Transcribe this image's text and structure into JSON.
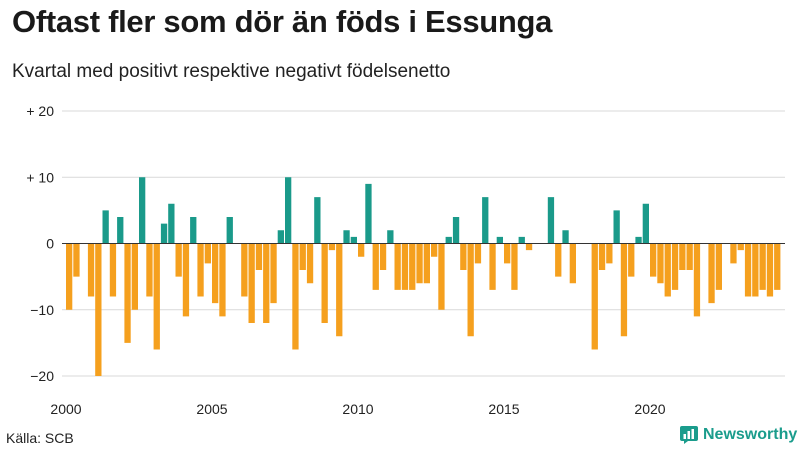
{
  "title": "Oftast fler som dör än föds i Essunga",
  "subtitle": "Kvartal med positivt respektive negativt födelsenetto",
  "source": "Källa: SCB",
  "brand": "Newsworthy",
  "colors": {
    "positive": "#1a9a8a",
    "negative": "#f5a01e",
    "grid": "#d9d9d9",
    "brand": "#1a9c8c"
  },
  "chart_data": {
    "type": "bar",
    "start_year": 2000,
    "x_ticks": [
      "2000",
      "2005",
      "2010",
      "2015",
      "2020"
    ],
    "y_ticks": [
      {
        "value": 20,
        "label": "+ 20"
      },
      {
        "value": 10,
        "label": "+ 10"
      },
      {
        "value": 0,
        "label": "0"
      },
      {
        "value": -10,
        "label": "−10"
      },
      {
        "value": -20,
        "label": "−20"
      }
    ],
    "ylim": [
      -20,
      20
    ],
    "grid": true,
    "values": [
      -10,
      -5,
      0,
      -8,
      -20,
      5,
      -8,
      4,
      -15,
      -10,
      10,
      -8,
      -16,
      3,
      6,
      -5,
      -11,
      4,
      -8,
      -3,
      -9,
      -11,
      4,
      0,
      -8,
      -12,
      -4,
      -12,
      -9,
      2,
      10,
      -16,
      -4,
      -6,
      7,
      -12,
      -1,
      -14,
      2,
      1,
      -2,
      9,
      -7,
      -4,
      2,
      -7,
      -7,
      -7,
      -6,
      -6,
      -2,
      -10,
      1,
      4,
      -4,
      -14,
      -3,
      7,
      -7,
      1,
      -3,
      -7,
      1,
      -1,
      0,
      0,
      7,
      -5,
      2,
      -6,
      0,
      0,
      -16,
      -4,
      -3,
      5,
      -14,
      -5,
      1,
      6,
      -5,
      -6,
      -8,
      -7,
      -4,
      -4,
      -11,
      0,
      -9,
      -7,
      0,
      -3,
      -1,
      -8,
      -8,
      -7,
      -8,
      -7
    ]
  }
}
